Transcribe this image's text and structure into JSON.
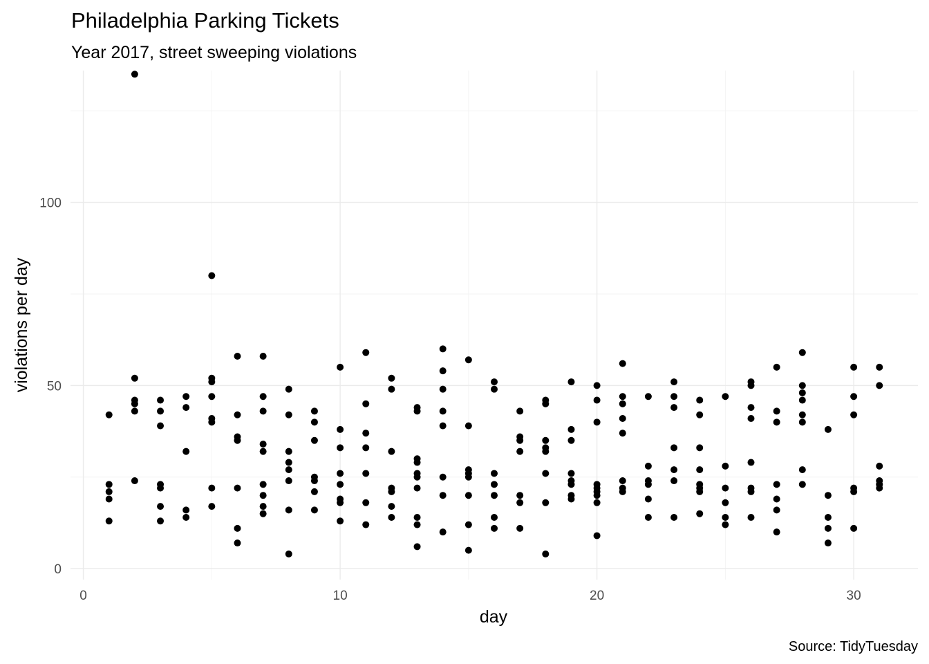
{
  "chart_data": {
    "type": "scatter",
    "title": "Philadelphia Parking Tickets",
    "subtitle": "Year 2017, street sweeping violations",
    "xlabel": "day",
    "ylabel": "violations per day",
    "caption": "Source: TidyTuesday",
    "xlim": [
      -0.5,
      32.5
    ],
    "ylim": [
      -3,
      136
    ],
    "x_ticks": [
      0,
      10,
      20,
      30
    ],
    "y_ticks": [
      0,
      50,
      100
    ],
    "x_tick_labels": [
      "0",
      "10",
      "20",
      "30"
    ],
    "y_tick_labels": [
      "0",
      "50",
      "100"
    ],
    "grid": true,
    "point_color": "#000000",
    "points": [
      {
        "x": 1,
        "y": 42
      },
      {
        "x": 1,
        "y": 23
      },
      {
        "x": 1,
        "y": 21
      },
      {
        "x": 1,
        "y": 19
      },
      {
        "x": 1,
        "y": 13
      },
      {
        "x": 2,
        "y": 135
      },
      {
        "x": 2,
        "y": 52
      },
      {
        "x": 2,
        "y": 46
      },
      {
        "x": 2,
        "y": 45
      },
      {
        "x": 2,
        "y": 43
      },
      {
        "x": 2,
        "y": 24
      },
      {
        "x": 3,
        "y": 46
      },
      {
        "x": 3,
        "y": 43
      },
      {
        "x": 3,
        "y": 39
      },
      {
        "x": 3,
        "y": 23
      },
      {
        "x": 3,
        "y": 22
      },
      {
        "x": 3,
        "y": 17
      },
      {
        "x": 3,
        "y": 13
      },
      {
        "x": 4,
        "y": 47
      },
      {
        "x": 4,
        "y": 44
      },
      {
        "x": 4,
        "y": 32
      },
      {
        "x": 4,
        "y": 16
      },
      {
        "x": 4,
        "y": 14
      },
      {
        "x": 5,
        "y": 80
      },
      {
        "x": 5,
        "y": 52
      },
      {
        "x": 5,
        "y": 51
      },
      {
        "x": 5,
        "y": 47
      },
      {
        "x": 5,
        "y": 41
      },
      {
        "x": 5,
        "y": 40
      },
      {
        "x": 5,
        "y": 22
      },
      {
        "x": 5,
        "y": 17
      },
      {
        "x": 6,
        "y": 58
      },
      {
        "x": 6,
        "y": 42
      },
      {
        "x": 6,
        "y": 36
      },
      {
        "x": 6,
        "y": 35
      },
      {
        "x": 6,
        "y": 22
      },
      {
        "x": 6,
        "y": 11
      },
      {
        "x": 6,
        "y": 7
      },
      {
        "x": 7,
        "y": 58
      },
      {
        "x": 7,
        "y": 47
      },
      {
        "x": 7,
        "y": 43
      },
      {
        "x": 7,
        "y": 34
      },
      {
        "x": 7,
        "y": 32
      },
      {
        "x": 7,
        "y": 23
      },
      {
        "x": 7,
        "y": 20
      },
      {
        "x": 7,
        "y": 17
      },
      {
        "x": 7,
        "y": 15
      },
      {
        "x": 8,
        "y": 49
      },
      {
        "x": 8,
        "y": 42
      },
      {
        "x": 8,
        "y": 32
      },
      {
        "x": 8,
        "y": 29
      },
      {
        "x": 8,
        "y": 27
      },
      {
        "x": 8,
        "y": 24
      },
      {
        "x": 8,
        "y": 16
      },
      {
        "x": 8,
        "y": 4
      },
      {
        "x": 9,
        "y": 43
      },
      {
        "x": 9,
        "y": 40
      },
      {
        "x": 9,
        "y": 35
      },
      {
        "x": 9,
        "y": 25
      },
      {
        "x": 9,
        "y": 24
      },
      {
        "x": 9,
        "y": 21
      },
      {
        "x": 9,
        "y": 16
      },
      {
        "x": 10,
        "y": 55
      },
      {
        "x": 10,
        "y": 38
      },
      {
        "x": 10,
        "y": 33
      },
      {
        "x": 10,
        "y": 26
      },
      {
        "x": 10,
        "y": 23
      },
      {
        "x": 10,
        "y": 19
      },
      {
        "x": 10,
        "y": 18
      },
      {
        "x": 10,
        "y": 13
      },
      {
        "x": 11,
        "y": 59
      },
      {
        "x": 11,
        "y": 45
      },
      {
        "x": 11,
        "y": 37
      },
      {
        "x": 11,
        "y": 33
      },
      {
        "x": 11,
        "y": 26
      },
      {
        "x": 11,
        "y": 18
      },
      {
        "x": 11,
        "y": 12
      },
      {
        "x": 12,
        "y": 52
      },
      {
        "x": 12,
        "y": 49
      },
      {
        "x": 12,
        "y": 32
      },
      {
        "x": 12,
        "y": 22
      },
      {
        "x": 12,
        "y": 21
      },
      {
        "x": 12,
        "y": 17
      },
      {
        "x": 12,
        "y": 14
      },
      {
        "x": 13,
        "y": 44
      },
      {
        "x": 13,
        "y": 43
      },
      {
        "x": 13,
        "y": 30
      },
      {
        "x": 13,
        "y": 29
      },
      {
        "x": 13,
        "y": 26
      },
      {
        "x": 13,
        "y": 25
      },
      {
        "x": 13,
        "y": 22
      },
      {
        "x": 13,
        "y": 14
      },
      {
        "x": 13,
        "y": 12
      },
      {
        "x": 13,
        "y": 6
      },
      {
        "x": 14,
        "y": 60
      },
      {
        "x": 14,
        "y": 54
      },
      {
        "x": 14,
        "y": 49
      },
      {
        "x": 14,
        "y": 43
      },
      {
        "x": 14,
        "y": 39
      },
      {
        "x": 14,
        "y": 25
      },
      {
        "x": 14,
        "y": 20
      },
      {
        "x": 14,
        "y": 10
      },
      {
        "x": 15,
        "y": 57
      },
      {
        "x": 15,
        "y": 39
      },
      {
        "x": 15,
        "y": 27
      },
      {
        "x": 15,
        "y": 26
      },
      {
        "x": 15,
        "y": 25
      },
      {
        "x": 15,
        "y": 20
      },
      {
        "x": 15,
        "y": 12
      },
      {
        "x": 15,
        "y": 5
      },
      {
        "x": 16,
        "y": 51
      },
      {
        "x": 16,
        "y": 49
      },
      {
        "x": 16,
        "y": 26
      },
      {
        "x": 16,
        "y": 23
      },
      {
        "x": 16,
        "y": 20
      },
      {
        "x": 16,
        "y": 14
      },
      {
        "x": 16,
        "y": 11
      },
      {
        "x": 17,
        "y": 43
      },
      {
        "x": 17,
        "y": 36
      },
      {
        "x": 17,
        "y": 35
      },
      {
        "x": 17,
        "y": 32
      },
      {
        "x": 17,
        "y": 20
      },
      {
        "x": 17,
        "y": 18
      },
      {
        "x": 17,
        "y": 11
      },
      {
        "x": 18,
        "y": 46
      },
      {
        "x": 18,
        "y": 45
      },
      {
        "x": 18,
        "y": 35
      },
      {
        "x": 18,
        "y": 33
      },
      {
        "x": 18,
        "y": 32
      },
      {
        "x": 18,
        "y": 26
      },
      {
        "x": 18,
        "y": 18
      },
      {
        "x": 18,
        "y": 4
      },
      {
        "x": 19,
        "y": 51
      },
      {
        "x": 19,
        "y": 38
      },
      {
        "x": 19,
        "y": 35
      },
      {
        "x": 19,
        "y": 26
      },
      {
        "x": 19,
        "y": 24
      },
      {
        "x": 19,
        "y": 23
      },
      {
        "x": 19,
        "y": 20
      },
      {
        "x": 19,
        "y": 19
      },
      {
        "x": 20,
        "y": 50
      },
      {
        "x": 20,
        "y": 46
      },
      {
        "x": 20,
        "y": 40
      },
      {
        "x": 20,
        "y": 23
      },
      {
        "x": 20,
        "y": 22
      },
      {
        "x": 20,
        "y": 21
      },
      {
        "x": 20,
        "y": 20
      },
      {
        "x": 20,
        "y": 18
      },
      {
        "x": 20,
        "y": 9
      },
      {
        "x": 21,
        "y": 56
      },
      {
        "x": 21,
        "y": 47
      },
      {
        "x": 21,
        "y": 45
      },
      {
        "x": 21,
        "y": 41
      },
      {
        "x": 21,
        "y": 37
      },
      {
        "x": 21,
        "y": 24
      },
      {
        "x": 21,
        "y": 22
      },
      {
        "x": 21,
        "y": 21
      },
      {
        "x": 22,
        "y": 47
      },
      {
        "x": 22,
        "y": 28
      },
      {
        "x": 22,
        "y": 24
      },
      {
        "x": 22,
        "y": 23
      },
      {
        "x": 22,
        "y": 19
      },
      {
        "x": 22,
        "y": 14
      },
      {
        "x": 23,
        "y": 51
      },
      {
        "x": 23,
        "y": 47
      },
      {
        "x": 23,
        "y": 44
      },
      {
        "x": 23,
        "y": 33
      },
      {
        "x": 23,
        "y": 27
      },
      {
        "x": 23,
        "y": 24
      },
      {
        "x": 23,
        "y": 14
      },
      {
        "x": 24,
        "y": 46
      },
      {
        "x": 24,
        "y": 42
      },
      {
        "x": 24,
        "y": 33
      },
      {
        "x": 24,
        "y": 27
      },
      {
        "x": 24,
        "y": 23
      },
      {
        "x": 24,
        "y": 22
      },
      {
        "x": 24,
        "y": 21
      },
      {
        "x": 24,
        "y": 15
      },
      {
        "x": 25,
        "y": 47
      },
      {
        "x": 25,
        "y": 28
      },
      {
        "x": 25,
        "y": 22
      },
      {
        "x": 25,
        "y": 18
      },
      {
        "x": 25,
        "y": 14
      },
      {
        "x": 25,
        "y": 12
      },
      {
        "x": 26,
        "y": 51
      },
      {
        "x": 26,
        "y": 50
      },
      {
        "x": 26,
        "y": 44
      },
      {
        "x": 26,
        "y": 41
      },
      {
        "x": 26,
        "y": 29
      },
      {
        "x": 26,
        "y": 22
      },
      {
        "x": 26,
        "y": 21
      },
      {
        "x": 26,
        "y": 14
      },
      {
        "x": 27,
        "y": 55
      },
      {
        "x": 27,
        "y": 43
      },
      {
        "x": 27,
        "y": 40
      },
      {
        "x": 27,
        "y": 23
      },
      {
        "x": 27,
        "y": 19
      },
      {
        "x": 27,
        "y": 16
      },
      {
        "x": 27,
        "y": 10
      },
      {
        "x": 28,
        "y": 59
      },
      {
        "x": 28,
        "y": 50
      },
      {
        "x": 28,
        "y": 48
      },
      {
        "x": 28,
        "y": 46
      },
      {
        "x": 28,
        "y": 42
      },
      {
        "x": 28,
        "y": 40
      },
      {
        "x": 28,
        "y": 27
      },
      {
        "x": 28,
        "y": 23
      },
      {
        "x": 29,
        "y": 38
      },
      {
        "x": 29,
        "y": 20
      },
      {
        "x": 29,
        "y": 14
      },
      {
        "x": 29,
        "y": 11
      },
      {
        "x": 29,
        "y": 7
      },
      {
        "x": 30,
        "y": 55
      },
      {
        "x": 30,
        "y": 47
      },
      {
        "x": 30,
        "y": 42
      },
      {
        "x": 30,
        "y": 22
      },
      {
        "x": 30,
        "y": 21
      },
      {
        "x": 30,
        "y": 11
      },
      {
        "x": 31,
        "y": 55
      },
      {
        "x": 31,
        "y": 50
      },
      {
        "x": 31,
        "y": 28
      },
      {
        "x": 31,
        "y": 24
      },
      {
        "x": 31,
        "y": 23
      },
      {
        "x": 31,
        "y": 22
      }
    ]
  }
}
